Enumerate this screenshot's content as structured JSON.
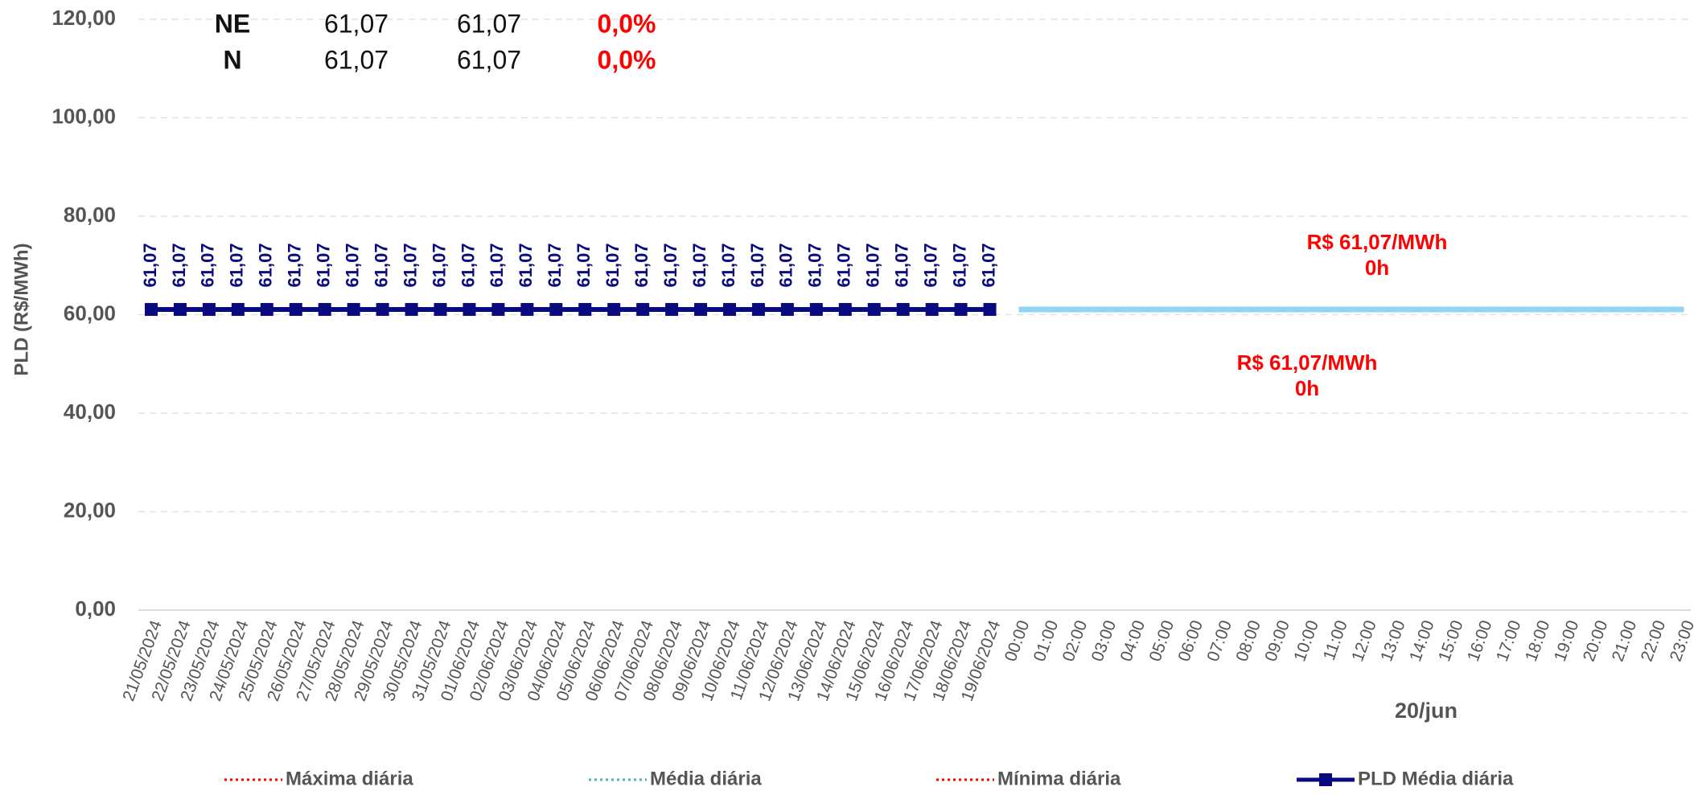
{
  "chart_data": {
    "type": "line",
    "y_label": "PLD (R$/MWh)",
    "group_label": "20/jun",
    "categories": [
      "21/05/2024",
      "22/05/2024",
      "23/05/2024",
      "24/05/2024",
      "25/05/2024",
      "26/05/2024",
      "27/05/2024",
      "28/05/2024",
      "29/05/2024",
      "30/05/2024",
      "31/05/2024",
      "01/06/2024",
      "02/06/2024",
      "03/06/2024",
      "04/06/2024",
      "05/06/2024",
      "06/06/2024",
      "07/06/2024",
      "08/06/2024",
      "09/06/2024",
      "10/06/2024",
      "11/06/2024",
      "12/06/2024",
      "13/06/2024",
      "14/06/2024",
      "15/06/2024",
      "16/06/2024",
      "17/06/2024",
      "18/06/2024",
      "19/06/2024",
      "00:00",
      "01:00",
      "02:00",
      "03:00",
      "04:00",
      "05:00",
      "06:00",
      "07:00",
      "08:00",
      "09:00",
      "10:00",
      "11:00",
      "12:00",
      "13:00",
      "14:00",
      "15:00",
      "16:00",
      "17:00",
      "18:00",
      "19:00",
      "20:00",
      "21:00",
      "22:00",
      "23:00"
    ],
    "ylim": [
      0,
      120
    ],
    "yticks": [
      {
        "value": 0,
        "label": "0,00"
      },
      {
        "value": 20,
        "label": "20,00"
      },
      {
        "value": 40,
        "label": "40,00"
      },
      {
        "value": 60,
        "label": "60,00"
      },
      {
        "value": 80,
        "label": "80,00"
      },
      {
        "value": 100,
        "label": "100,00"
      },
      {
        "value": 120,
        "label": "120,00"
      }
    ],
    "grid": true,
    "series": [
      {
        "name": "Máxima diária",
        "color": "#ff0000",
        "dash": "dotted",
        "values": [
          null,
          null,
          null,
          null,
          null,
          null,
          null,
          null,
          null,
          null,
          null,
          null,
          null,
          null,
          null,
          null,
          null,
          null,
          null,
          null,
          null,
          null,
          null,
          null,
          null,
          null,
          null,
          null,
          null,
          null,
          61.07,
          61.07,
          61.07,
          61.07,
          61.07,
          61.07,
          61.07,
          61.07,
          61.07,
          61.07,
          61.07,
          61.07,
          61.07,
          61.07,
          61.07,
          61.07,
          61.07,
          61.07,
          61.07,
          61.07,
          61.07,
          61.07,
          61.07,
          61.07
        ]
      },
      {
        "name": "Média diária",
        "color": "#4fb3b3",
        "dash": "dotted",
        "values": [
          null,
          null,
          null,
          null,
          null,
          null,
          null,
          null,
          null,
          null,
          null,
          null,
          null,
          null,
          null,
          null,
          null,
          null,
          null,
          null,
          null,
          null,
          null,
          null,
          null,
          null,
          null,
          null,
          null,
          null,
          61.07,
          61.07,
          61.07,
          61.07,
          61.07,
          61.07,
          61.07,
          61.07,
          61.07,
          61.07,
          61.07,
          61.07,
          61.07,
          61.07,
          61.07,
          61.07,
          61.07,
          61.07,
          61.07,
          61.07,
          61.07,
          61.07,
          61.07,
          61.07
        ]
      },
      {
        "name": "Mínima diária",
        "color": "#ff0000",
        "dash": "dotted",
        "values": [
          null,
          null,
          null,
          null,
          null,
          null,
          null,
          null,
          null,
          null,
          null,
          null,
          null,
          null,
          null,
          null,
          null,
          null,
          null,
          null,
          null,
          null,
          null,
          null,
          null,
          null,
          null,
          null,
          null,
          null,
          61.07,
          61.07,
          61.07,
          61.07,
          61.07,
          61.07,
          61.07,
          61.07,
          61.07,
          61.07,
          61.07,
          61.07,
          61.07,
          61.07,
          61.07,
          61.07,
          61.07,
          61.07,
          61.07,
          61.07,
          61.07,
          61.07,
          61.07,
          61.07
        ]
      },
      {
        "name": "PLD Média diária",
        "color": "#0a0a80",
        "marker": "square",
        "values": [
          61.07,
          61.07,
          61.07,
          61.07,
          61.07,
          61.07,
          61.07,
          61.07,
          61.07,
          61.07,
          61.07,
          61.07,
          61.07,
          61.07,
          61.07,
          61.07,
          61.07,
          61.07,
          61.07,
          61.07,
          61.07,
          61.07,
          61.07,
          61.07,
          61.07,
          61.07,
          61.07,
          61.07,
          61.07,
          61.07,
          null,
          null,
          null,
          null,
          null,
          null,
          null,
          null,
          null,
          null,
          null,
          null,
          null,
          null,
          null,
          null,
          null,
          null,
          null,
          null,
          null,
          null,
          null,
          null
        ],
        "value_labels": [
          "61,07",
          "61,07",
          "61,07",
          "61,07",
          "61,07",
          "61,07",
          "61,07",
          "61,07",
          "61,07",
          "61,07",
          "61,07",
          "61,07",
          "61,07",
          "61,07",
          "61,07",
          "61,07",
          "61,07",
          "61,07",
          "61,07",
          "61,07",
          "61,07",
          "61,07",
          "61,07",
          "61,07",
          "61,07",
          "61,07",
          "61,07",
          "61,07",
          "61,07",
          "61,07",
          null,
          null,
          null,
          null,
          null,
          null,
          null,
          null,
          null,
          null,
          null,
          null,
          null,
          null,
          null,
          null,
          null,
          null,
          null,
          null,
          null,
          null,
          null,
          null
        ]
      },
      {
        "color": "#8fd6f2",
        "legend": false,
        "values": [
          null,
          null,
          null,
          null,
          null,
          null,
          null,
          null,
          null,
          null,
          null,
          null,
          null,
          null,
          null,
          null,
          null,
          null,
          null,
          null,
          null,
          null,
          null,
          null,
          null,
          null,
          null,
          null,
          null,
          null,
          61.07,
          61.07,
          61.07,
          61.07,
          61.07,
          61.07,
          61.07,
          61.07,
          61.07,
          61.07,
          61.07,
          61.07,
          61.07,
          61.07,
          61.07,
          61.07,
          61.07,
          61.07,
          61.07,
          61.07,
          61.07,
          61.07,
          61.07,
          61.07
        ]
      }
    ],
    "annotations": [
      [
        "R$ 61,07/MWh",
        "0h"
      ],
      [
        "R$ 61,07/MWh",
        "0h"
      ]
    ],
    "table": [
      [
        "NE",
        "61,07",
        "61,07",
        "0,0%"
      ],
      [
        "N",
        "61,07",
        "61,07",
        "0,0%"
      ]
    ]
  }
}
